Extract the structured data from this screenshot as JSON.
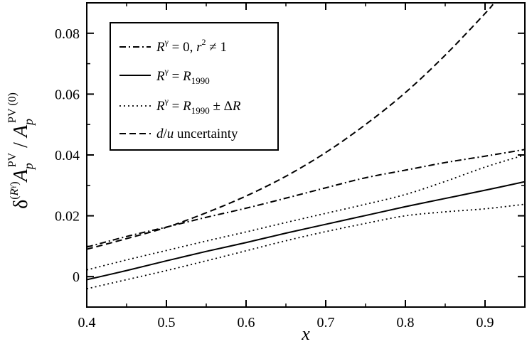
{
  "chart_data": {
    "type": "line",
    "xlabel": "x",
    "ylabel": "δ(Rγ) ApPV / ApPV (0)",
    "xlim": [
      0.4,
      0.95
    ],
    "ylim": [
      -0.01,
      0.09
    ],
    "xticks": [
      0.4,
      0.5,
      0.6,
      0.7,
      0.8,
      0.9
    ],
    "xtick_labels": [
      "0.4",
      "0.5",
      "0.6",
      "0.7",
      "0.8",
      "0.9"
    ],
    "yticks": [
      0,
      0.02,
      0.04,
      0.06,
      0.08
    ],
    "ytick_labels": [
      "0",
      "0.02",
      "0.04",
      "0.06",
      "0.08"
    ],
    "grid": false,
    "legend_position": "top-left",
    "series": [
      {
        "name": "Rγ = 0, r² ≠ 1",
        "dash": "dashdot",
        "x": [
          0.4,
          0.45,
          0.5,
          0.55,
          0.6,
          0.65,
          0.7,
          0.75,
          0.8,
          0.85,
          0.9,
          0.95
        ],
        "y": [
          0.0097,
          0.0132,
          0.0163,
          0.0195,
          0.0225,
          0.0258,
          0.0292,
          0.0325,
          0.035,
          0.0375,
          0.0396,
          0.0418
        ]
      },
      {
        "name": "Rγ = R1990",
        "dash": "solid",
        "x": [
          0.4,
          0.45,
          0.5,
          0.55,
          0.6,
          0.65,
          0.7,
          0.75,
          0.8,
          0.85,
          0.9,
          0.95
        ],
        "y": [
          -0.001,
          0.002,
          0.0052,
          0.0083,
          0.0112,
          0.0143,
          0.0172,
          0.0201,
          0.023,
          0.0257,
          0.0284,
          0.0312
        ]
      },
      {
        "name": "Rγ = R1990 + ΔR",
        "legend": false,
        "dash": "dotted",
        "x": [
          0.4,
          0.45,
          0.5,
          0.55,
          0.6,
          0.65,
          0.7,
          0.75,
          0.8,
          0.85,
          0.9,
          0.95
        ],
        "y": [
          0.0022,
          0.0055,
          0.0086,
          0.0117,
          0.0147,
          0.0178,
          0.0208,
          0.0238,
          0.027,
          0.0313,
          0.036,
          0.04
        ]
      },
      {
        "name": "Rγ = R1990 − ΔR",
        "legend": false,
        "dash": "dotted",
        "x": [
          0.4,
          0.45,
          0.5,
          0.55,
          0.6,
          0.65,
          0.7,
          0.75,
          0.8,
          0.85,
          0.9,
          0.95
        ],
        "y": [
          -0.004,
          -0.001,
          0.002,
          0.0052,
          0.0085,
          0.0118,
          0.0148,
          0.0175,
          0.02,
          0.0213,
          0.0223,
          0.0238
        ]
      },
      {
        "name": "d/u uncertainty",
        "dash": "dashed",
        "x": [
          0.4,
          0.45,
          0.5,
          0.55,
          0.6,
          0.65,
          0.7,
          0.75,
          0.8,
          0.85,
          0.9,
          0.91
        ],
        "y": [
          0.009,
          0.0125,
          0.0162,
          0.021,
          0.0265,
          0.033,
          0.0408,
          0.05,
          0.0605,
          0.0728,
          0.0865,
          0.0895
        ]
      }
    ],
    "legend": [
      {
        "dash": "dashdot",
        "label": "Rγ = 0, r² ≠ 1"
      },
      {
        "dash": "solid",
        "label": "Rγ = R1990"
      },
      {
        "dash": "dotted",
        "label": "Rγ = R1990 ± ΔR"
      },
      {
        "dash": "dashed",
        "label": "d/u uncertainty"
      }
    ]
  }
}
